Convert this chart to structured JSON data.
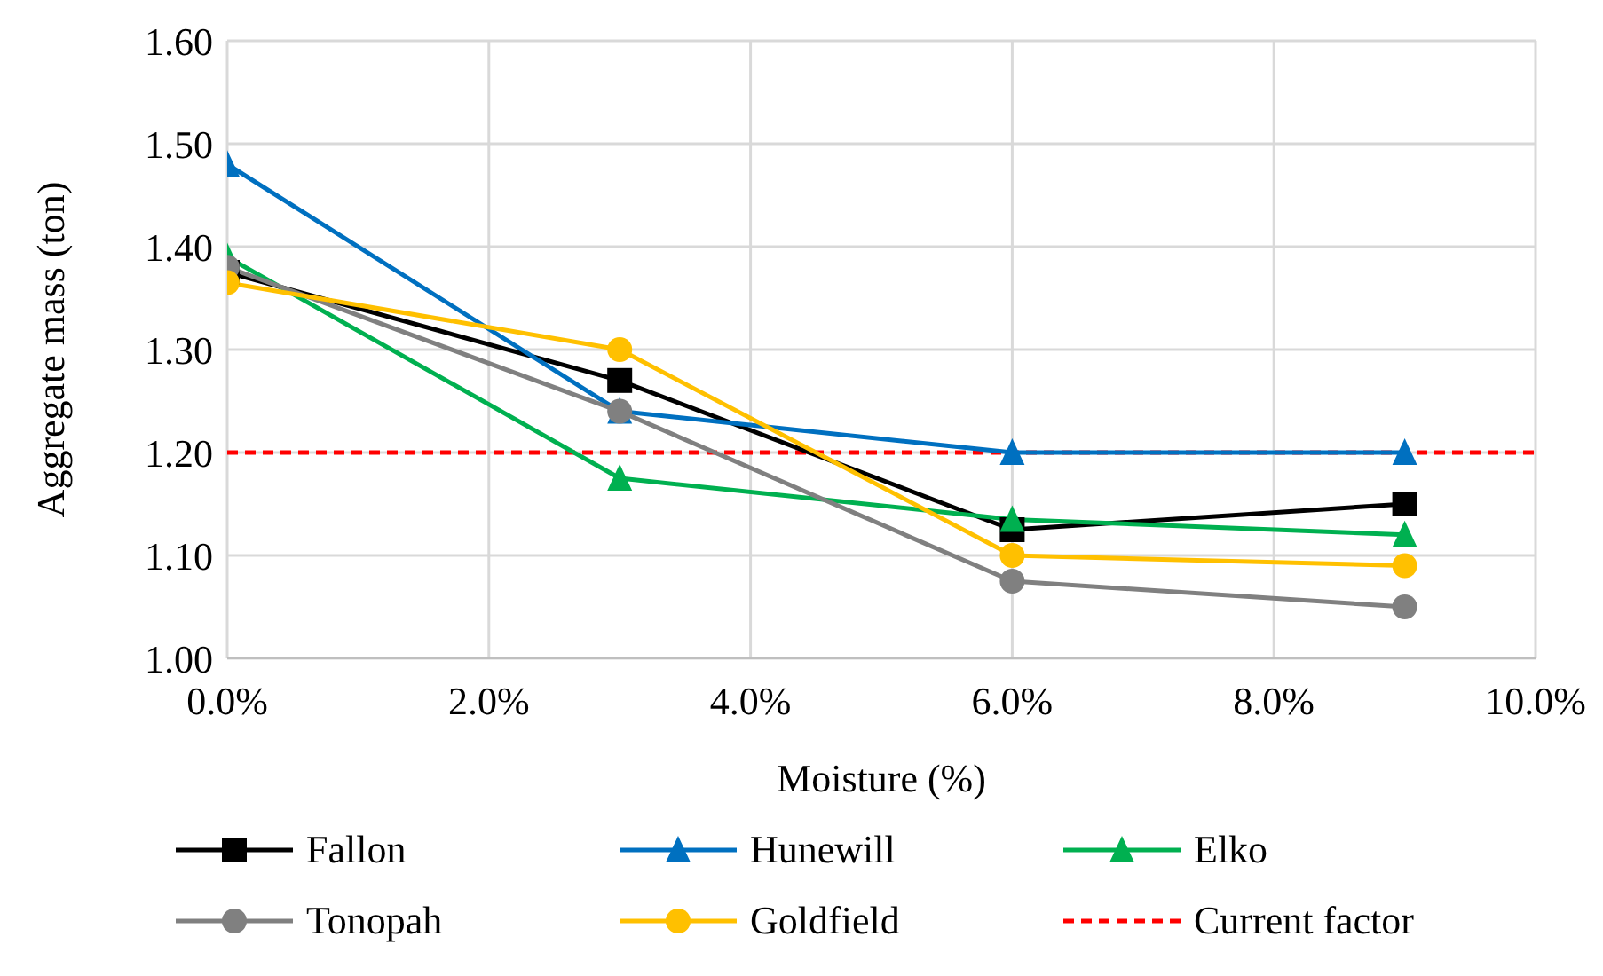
{
  "chart_data": {
    "type": "line",
    "xlabel": "Moisture (%)",
    "ylabel": "Aggregate mass (ton)",
    "x": [
      0,
      3,
      6,
      9
    ],
    "series": [
      {
        "name": "Fallon",
        "color": "#000000",
        "marker": "square",
        "values": [
          1.375,
          1.27,
          1.125,
          1.15
        ]
      },
      {
        "name": "Hunewill",
        "color": "#0070c0",
        "marker": "triangle",
        "values": [
          1.48,
          1.24,
          1.2,
          1.2
        ]
      },
      {
        "name": "Elko",
        "color": "#00b050",
        "marker": "triangle",
        "values": [
          1.39,
          1.175,
          1.135,
          1.12
        ]
      },
      {
        "name": "Tonopah",
        "color": "#808080",
        "marker": "circle",
        "values": [
          1.38,
          1.24,
          1.075,
          1.05
        ]
      },
      {
        "name": "Goldfield",
        "color": "#ffc000",
        "marker": "circle",
        "values": [
          1.365,
          1.3,
          1.1,
          1.09
        ]
      }
    ],
    "ref_lines": [
      {
        "axis": "y",
        "value": 1.2,
        "label": "Current factor",
        "color": "#ff0000",
        "line_style": "dashed"
      }
    ],
    "xlim": [
      0,
      10
    ],
    "xticks": [
      {
        "value": 0,
        "label": "0.0%"
      },
      {
        "value": 2,
        "label": "2.0%"
      },
      {
        "value": 4,
        "label": "4.0%"
      },
      {
        "value": 6,
        "label": "6.0%"
      },
      {
        "value": 8,
        "label": "8.0%"
      },
      {
        "value": 10,
        "label": "10.0%"
      }
    ],
    "ylim": [
      1,
      1.6
    ],
    "yticks": [
      {
        "value": 1,
        "label": "1.00"
      },
      {
        "value": 1.1,
        "label": "1.10"
      },
      {
        "value": 1.2,
        "label": "1.20"
      },
      {
        "value": 1.3,
        "label": "1.30"
      },
      {
        "value": 1.4,
        "label": "1.40"
      },
      {
        "value": 1.5,
        "label": "1.50"
      },
      {
        "value": 1.6,
        "label": "1.60"
      }
    ],
    "grid": true,
    "legend": "bottom"
  }
}
